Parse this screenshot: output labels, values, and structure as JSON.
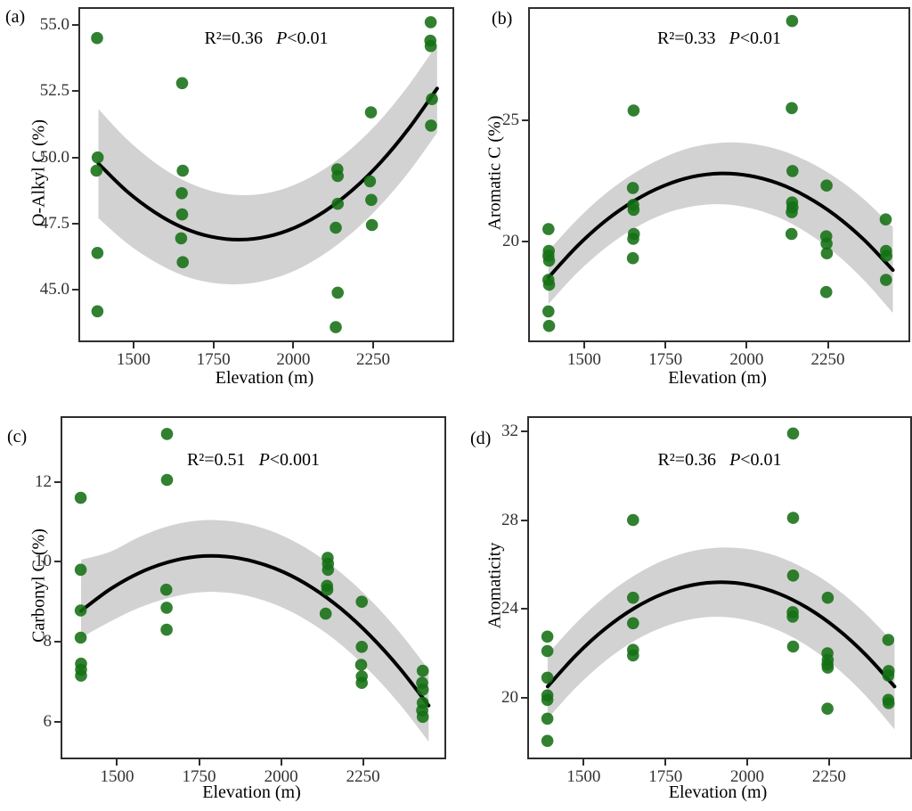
{
  "style": {
    "point_color": "#156f15",
    "point_opacity": 0.88,
    "band_color": "#d2d2d2",
    "line_color": "#000000",
    "axis_color": "#2e2e2e",
    "background": "#ffffff"
  },
  "chart_data": [
    {
      "type": "scatter",
      "label": "(a)",
      "xlabel": "Elevation (m)",
      "ylabel": "O-Alkyl C (%)",
      "annotation": {
        "r2": "R²=0.36",
        "p_italic": "P",
        "p_rest": "<0.01"
      },
      "xlim": [
        1333,
        2498
      ],
      "ylim": [
        43.1,
        55.6
      ],
      "xticks": [
        {
          "v": 1500,
          "t": "1500"
        },
        {
          "v": 1750,
          "t": "1750"
        },
        {
          "v": 2000,
          "t": "2000"
        },
        {
          "v": 2250,
          "t": "2250"
        }
      ],
      "yticks": [
        {
          "v": 45.0,
          "t": "45.0"
        },
        {
          "v": 47.5,
          "t": "47.5"
        },
        {
          "v": 50.0,
          "t": "50.0"
        },
        {
          "v": 52.5,
          "t": "52.5"
        },
        {
          "v": 55.0,
          "t": "55.0"
        }
      ],
      "points": [
        [
          1386,
          54.5
        ],
        [
          1388,
          50.0
        ],
        [
          1384,
          49.5
        ],
        [
          1387,
          46.4
        ],
        [
          1387,
          44.2
        ],
        [
          1652,
          52.8
        ],
        [
          1654,
          49.5
        ],
        [
          1651,
          48.65
        ],
        [
          1652,
          47.85
        ],
        [
          1649,
          46.95
        ],
        [
          1654,
          46.05
        ],
        [
          2138,
          49.55
        ],
        [
          2139,
          49.3
        ],
        [
          2139,
          48.25
        ],
        [
          2133,
          47.35
        ],
        [
          2139,
          44.9
        ],
        [
          2133,
          43.6
        ],
        [
          2243,
          51.7
        ],
        [
          2240,
          49.1
        ],
        [
          2244,
          48.4
        ],
        [
          2246,
          47.45
        ],
        [
          2430,
          55.1
        ],
        [
          2429,
          54.4
        ],
        [
          2430,
          54.2
        ],
        [
          2434,
          52.2
        ],
        [
          2431,
          51.2
        ]
      ],
      "fit": [
        [
          1390,
          49.77
        ],
        [
          1478,
          48.74
        ],
        [
          1567,
          47.93
        ],
        [
          1655,
          47.35
        ],
        [
          1743,
          47.01
        ],
        [
          1832,
          46.9
        ],
        [
          1920,
          47.02
        ],
        [
          2008,
          47.37
        ],
        [
          2097,
          47.96
        ],
        [
          2185,
          48.77
        ],
        [
          2273,
          49.81
        ],
        [
          2362,
          51.1
        ],
        [
          2450,
          52.6
        ]
      ],
      "band": [
        [
          1390,
          47.71,
          51.83
        ],
        [
          1478,
          46.78,
          50.7
        ],
        [
          1567,
          46.06,
          49.8
        ],
        [
          1655,
          45.55,
          49.15
        ],
        [
          1743,
          45.28,
          48.74
        ],
        [
          1832,
          45.22,
          48.58
        ],
        [
          1920,
          45.38,
          48.66
        ],
        [
          2008,
          45.75,
          48.99
        ],
        [
          2097,
          46.36,
          49.56
        ],
        [
          2185,
          47.17,
          50.37
        ],
        [
          2273,
          48.2,
          51.42
        ],
        [
          2362,
          49.46,
          52.74
        ],
        [
          2450,
          50.93,
          54.27
        ]
      ]
    },
    {
      "type": "scatter",
      "label": "(b)",
      "xlabel": "Elevation (m)",
      "ylabel": "Aromatic C (%)",
      "annotation": {
        "r2": "R²=0.33",
        "p_italic": "P",
        "p_rest": "<0.01"
      },
      "xlim": [
        1333,
        2498
      ],
      "ylim": [
        15.9,
        29.6
      ],
      "xticks": [
        {
          "v": 1500,
          "t": "1500"
        },
        {
          "v": 1750,
          "t": "1750"
        },
        {
          "v": 2000,
          "t": "2000"
        },
        {
          "v": 2250,
          "t": "2250"
        }
      ],
      "yticks": [
        {
          "v": 20,
          "t": "20"
        },
        {
          "v": 25,
          "t": "25"
        }
      ],
      "points": [
        [
          1390,
          20.5
        ],
        [
          1391,
          19.6
        ],
        [
          1390,
          19.4
        ],
        [
          1392,
          19.2
        ],
        [
          1390,
          18.4
        ],
        [
          1392,
          18.2
        ],
        [
          1390,
          17.1
        ],
        [
          1392,
          16.5
        ],
        [
          1652,
          25.4
        ],
        [
          1650,
          22.2
        ],
        [
          1651,
          21.5
        ],
        [
          1652,
          21.3
        ],
        [
          1653,
          20.3
        ],
        [
          1651,
          20.1
        ],
        [
          1650,
          19.3
        ],
        [
          2140,
          29.1
        ],
        [
          2139,
          25.5
        ],
        [
          2141,
          22.9
        ],
        [
          2140,
          21.6
        ],
        [
          2141,
          21.4
        ],
        [
          2139,
          21.2
        ],
        [
          2138,
          20.3
        ],
        [
          2246,
          22.3
        ],
        [
          2245,
          20.2
        ],
        [
          2246,
          19.9
        ],
        [
          2247,
          19.5
        ],
        [
          2245,
          17.9
        ],
        [
          2428,
          20.9
        ],
        [
          2429,
          19.6
        ],
        [
          2430,
          19.4
        ],
        [
          2429,
          18.4
        ]
      ],
      "fit": [
        [
          1390,
          18.5
        ],
        [
          1478,
          19.79
        ],
        [
          1567,
          20.86
        ],
        [
          1655,
          21.68
        ],
        [
          1743,
          22.28
        ],
        [
          1832,
          22.66
        ],
        [
          1920,
          22.8
        ],
        [
          2008,
          22.71
        ],
        [
          2097,
          22.39
        ],
        [
          2185,
          21.84
        ],
        [
          2273,
          21.07
        ],
        [
          2362,
          20.05
        ],
        [
          2450,
          18.81
        ]
      ],
      "band": [
        [
          1390,
          17.4,
          19.6
        ],
        [
          1478,
          18.69,
          20.89
        ],
        [
          1567,
          19.74,
          21.98
        ],
        [
          1655,
          20.54,
          22.82
        ],
        [
          1743,
          21.11,
          23.45
        ],
        [
          1832,
          21.44,
          23.88
        ],
        [
          1920,
          21.53,
          24.07
        ],
        [
          2008,
          21.38,
          24.04
        ],
        [
          2097,
          20.99,
          23.79
        ],
        [
          2185,
          20.36,
          23.32
        ],
        [
          2273,
          19.5,
          22.64
        ],
        [
          2362,
          18.38,
          21.72
        ],
        [
          2450,
          17.04,
          20.58
        ]
      ]
    },
    {
      "type": "scatter",
      "label": "(c)",
      "xlabel": "Elevation (m)",
      "ylabel": "Carbonyl C (%)",
      "annotation": {
        "r2": "R²=0.51",
        "p_italic": "P",
        "p_rest": "<0.001"
      },
      "xlim": [
        1333,
        2498
      ],
      "ylim": [
        5.1,
        13.6
      ],
      "xticks": [
        {
          "v": 1500,
          "t": "1500"
        },
        {
          "v": 1750,
          "t": "1750"
        },
        {
          "v": 2000,
          "t": "2000"
        },
        {
          "v": 2250,
          "t": "2250"
        }
      ],
      "yticks": [
        {
          "v": 6,
          "t": "6"
        },
        {
          "v": 8,
          "t": "8"
        },
        {
          "v": 10,
          "t": "10"
        },
        {
          "v": 12,
          "t": "12"
        }
      ],
      "points": [
        [
          1389,
          11.6
        ],
        [
          1389,
          9.8
        ],
        [
          1389,
          8.78
        ],
        [
          1389,
          8.1
        ],
        [
          1390,
          7.45
        ],
        [
          1390,
          7.3
        ],
        [
          1390,
          7.15
        ],
        [
          1652,
          13.2
        ],
        [
          1652,
          12.05
        ],
        [
          1650,
          9.3
        ],
        [
          1651,
          8.85
        ],
        [
          1651,
          8.3
        ],
        [
          2142,
          10.1
        ],
        [
          2143,
          9.95
        ],
        [
          2143,
          9.8
        ],
        [
          2140,
          9.4
        ],
        [
          2141,
          9.3
        ],
        [
          2136,
          8.7
        ],
        [
          2246,
          9.0
        ],
        [
          2246,
          7.87
        ],
        [
          2244,
          7.42
        ],
        [
          2246,
          7.13
        ],
        [
          2246,
          6.97
        ],
        [
          2432,
          7.27
        ],
        [
          2430,
          6.97
        ],
        [
          2432,
          6.8
        ],
        [
          2432,
          6.47
        ],
        [
          2430,
          6.28
        ],
        [
          2432,
          6.12
        ]
      ],
      "fit": [
        [
          1390,
          8.77
        ],
        [
          1478,
          9.31
        ],
        [
          1567,
          9.72
        ],
        [
          1655,
          9.99
        ],
        [
          1743,
          10.13
        ],
        [
          1832,
          10.13
        ],
        [
          1920,
          10.0
        ],
        [
          2008,
          9.74
        ],
        [
          2097,
          9.34
        ],
        [
          2185,
          8.81
        ],
        [
          2273,
          8.14
        ],
        [
          2362,
          7.33
        ],
        [
          2450,
          6.4
        ]
      ],
      "band": [
        [
          1390,
          8.1,
          10.05
        ],
        [
          1478,
          8.5,
          10.25
        ],
        [
          1567,
          8.85,
          10.62
        ],
        [
          1655,
          9.09,
          10.89
        ],
        [
          1743,
          9.23,
          11.03
        ],
        [
          1832,
          9.23,
          11.03
        ],
        [
          1920,
          9.1,
          10.9
        ],
        [
          2008,
          8.84,
          10.64
        ],
        [
          2097,
          8.44,
          10.24
        ],
        [
          2185,
          7.91,
          9.71
        ],
        [
          2273,
          7.24,
          9.04
        ],
        [
          2362,
          6.43,
          8.23
        ],
        [
          2450,
          5.5,
          7.3
        ]
      ]
    },
    {
      "type": "scatter",
      "label": "(d)",
      "xlabel": "Elevation (m)",
      "ylabel": "Aromaticity",
      "annotation": {
        "r2": "R²=0.36",
        "p_italic": "P",
        "p_rest": "<0.01"
      },
      "xlim": [
        1333,
        2498
      ],
      "ylim": [
        17.3,
        32.6
      ],
      "xticks": [
        {
          "v": 1500,
          "t": "1500"
        },
        {
          "v": 1750,
          "t": "1750"
        },
        {
          "v": 2000,
          "t": "2000"
        },
        {
          "v": 2250,
          "t": "2250"
        }
      ],
      "yticks": [
        {
          "v": 20,
          "t": "20"
        },
        {
          "v": 24,
          "t": "24"
        },
        {
          "v": 28,
          "t": "28"
        },
        {
          "v": 32,
          "t": "32"
        }
      ],
      "points": [
        [
          1389,
          22.75
        ],
        [
          1389,
          22.1
        ],
        [
          1389,
          20.9
        ],
        [
          1389,
          20.1
        ],
        [
          1389,
          19.9
        ],
        [
          1389,
          19.05
        ],
        [
          1389,
          18.05
        ],
        [
          1651,
          28.0
        ],
        [
          1651,
          24.5
        ],
        [
          1651,
          23.35
        ],
        [
          1651,
          22.15
        ],
        [
          1651,
          21.9
        ],
        [
          2140,
          31.9
        ],
        [
          2140,
          28.1
        ],
        [
          2140,
          25.5
        ],
        [
          2139,
          23.85
        ],
        [
          2139,
          23.65
        ],
        [
          2140,
          22.3
        ],
        [
          2246,
          24.5
        ],
        [
          2245,
          22.0
        ],
        [
          2246,
          21.7
        ],
        [
          2245,
          21.5
        ],
        [
          2246,
          21.35
        ],
        [
          2245,
          19.5
        ],
        [
          2431,
          22.6
        ],
        [
          2432,
          21.2
        ],
        [
          2431,
          21.0
        ],
        [
          2431,
          19.9
        ],
        [
          2432,
          19.75
        ]
      ],
      "fit": [
        [
          1390,
          20.5
        ],
        [
          1478,
          21.93
        ],
        [
          1567,
          23.12
        ],
        [
          1655,
          24.03
        ],
        [
          1743,
          24.68
        ],
        [
          1832,
          25.07
        ],
        [
          1920,
          25.2
        ],
        [
          2008,
          25.07
        ],
        [
          2097,
          24.68
        ],
        [
          2185,
          24.03
        ],
        [
          2273,
          23.12
        ],
        [
          2362,
          21.93
        ],
        [
          2450,
          20.5
        ]
      ],
      "band": [
        [
          1390,
          19.05,
          21.95
        ],
        [
          1478,
          20.48,
          23.38
        ],
        [
          1567,
          21.66,
          24.58
        ],
        [
          1655,
          22.56,
          25.5
        ],
        [
          1743,
          23.18,
          26.18
        ],
        [
          1832,
          23.54,
          26.6
        ],
        [
          1920,
          23.64,
          26.76
        ],
        [
          2008,
          23.46,
          26.68
        ],
        [
          2097,
          23.02,
          26.34
        ],
        [
          2185,
          22.32,
          25.74
        ],
        [
          2273,
          21.34,
          24.9
        ],
        [
          2362,
          20.08,
          23.78
        ],
        [
          2450,
          18.57,
          22.43
        ]
      ]
    }
  ]
}
